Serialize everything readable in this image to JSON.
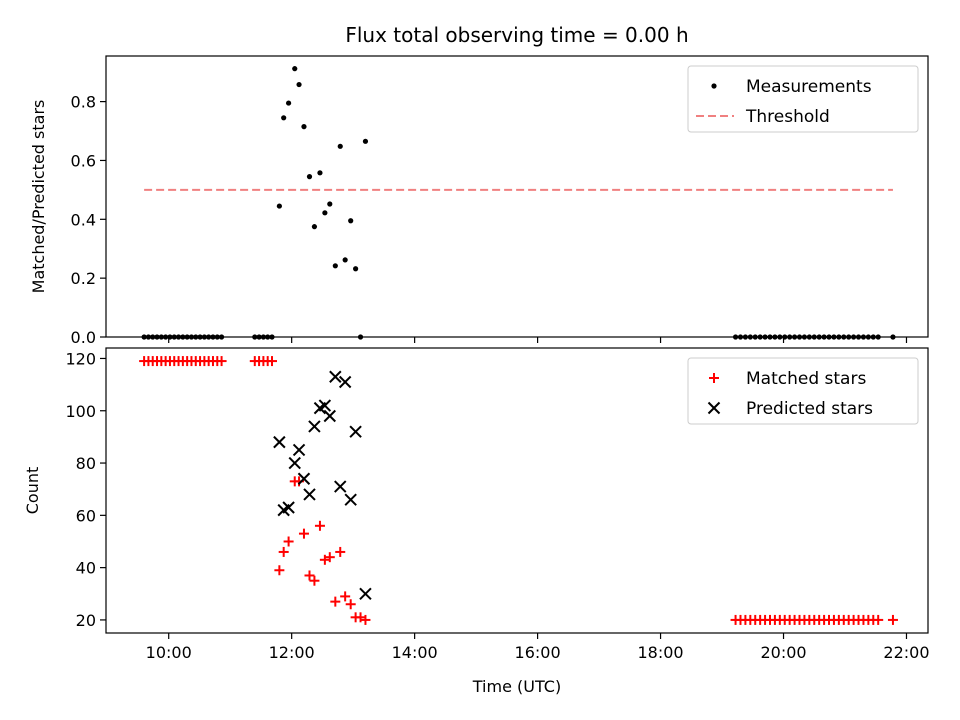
{
  "chart_data": [
    {
      "type": "scatter",
      "title": "Flux total observing time = 0.00 h",
      "xlabel": "",
      "ylabel": "Matched/Predicted stars",
      "xlim": [
        8.98,
        22.35
      ],
      "ylim": [
        0,
        0.955
      ],
      "xticks": [
        "10:00",
        "12:00",
        "14:00",
        "16:00",
        "18:00",
        "20:00",
        "22:00"
      ],
      "xtick_values": [
        10,
        12,
        14,
        16,
        18,
        20,
        22
      ],
      "xticks_labeled": false,
      "yticks": [
        0.0,
        0.2,
        0.4,
        0.6,
        0.8
      ],
      "ytick_labels": [
        "0.0",
        "0.2",
        "0.4",
        "0.6",
        "0.8"
      ],
      "legend": "top-right",
      "series": [
        {
          "name": "Measurements",
          "marker": "dot",
          "color": "#000000",
          "x": [
            9.6,
            9.67,
            9.74,
            9.81,
            9.88,
            9.95,
            10.02,
            10.09,
            10.16,
            10.23,
            10.3,
            10.37,
            10.44,
            10.51,
            10.58,
            10.65,
            10.72,
            10.79,
            10.86,
            11.4,
            11.47,
            11.54,
            11.61,
            11.68,
            11.8,
            11.87,
            11.95,
            12.05,
            12.12,
            12.2,
            12.29,
            12.37,
            12.46,
            12.54,
            12.62,
            12.71,
            12.79,
            12.87,
            12.96,
            13.04,
            13.12,
            13.2,
            19.22,
            19.3,
            19.38,
            19.46,
            19.54,
            19.62,
            19.7,
            19.78,
            19.86,
            19.94,
            20.02,
            20.1,
            20.18,
            20.26,
            20.34,
            20.42,
            20.5,
            20.58,
            20.66,
            20.74,
            20.82,
            20.9,
            20.98,
            21.06,
            21.14,
            21.22,
            21.3,
            21.38,
            21.46,
            21.54,
            21.78
          ],
          "y": [
            0,
            0,
            0,
            0,
            0,
            0,
            0,
            0,
            0,
            0,
            0,
            0,
            0,
            0,
            0,
            0,
            0,
            0,
            0,
            0,
            0,
            0,
            0,
            0,
            0.445,
            0.745,
            0.795,
            0.912,
            0.858,
            0.715,
            0.545,
            0.375,
            0.558,
            0.422,
            0.452,
            0.242,
            0.648,
            0.262,
            0.395,
            0.232,
            0.0,
            0.665,
            0,
            0,
            0,
            0,
            0,
            0,
            0,
            0,
            0,
            0,
            0,
            0,
            0,
            0,
            0,
            0,
            0,
            0,
            0,
            0,
            0,
            0,
            0,
            0,
            0,
            0,
            0,
            0,
            0,
            0,
            0
          ]
        },
        {
          "name": "Threshold",
          "marker": "dashed-line",
          "color": "#f08080",
          "x": [
            9.6,
            21.78
          ],
          "y": [
            0.5,
            0.5
          ]
        }
      ]
    },
    {
      "type": "scatter",
      "title": "",
      "xlabel": "Time (UTC)",
      "ylabel": "Count",
      "xlim": [
        8.98,
        22.35
      ],
      "ylim": [
        15,
        124
      ],
      "xticks": [
        "10:00",
        "12:00",
        "14:00",
        "16:00",
        "18:00",
        "20:00",
        "22:00"
      ],
      "xtick_values": [
        10,
        12,
        14,
        16,
        18,
        20,
        22
      ],
      "xticks_labeled": true,
      "yticks": [
        20,
        40,
        60,
        80,
        100,
        120
      ],
      "ytick_labels": [
        "20",
        "40",
        "60",
        "80",
        "100",
        "120"
      ],
      "legend": "top-right",
      "series": [
        {
          "name": "Matched stars",
          "marker": "plus",
          "color": "#ff0000",
          "x": [
            9.6,
            9.67,
            9.74,
            9.81,
            9.88,
            9.95,
            10.02,
            10.09,
            10.16,
            10.23,
            10.3,
            10.37,
            10.44,
            10.51,
            10.58,
            10.65,
            10.72,
            10.79,
            10.86,
            11.4,
            11.47,
            11.54,
            11.61,
            11.68,
            11.8,
            11.87,
            11.95,
            12.05,
            12.12,
            12.2,
            12.29,
            12.37,
            12.46,
            12.54,
            12.62,
            12.71,
            12.79,
            12.87,
            12.96,
            13.04,
            13.12,
            13.2,
            19.22,
            19.3,
            19.38,
            19.46,
            19.54,
            19.62,
            19.7,
            19.78,
            19.86,
            19.94,
            20.02,
            20.1,
            20.18,
            20.26,
            20.34,
            20.42,
            20.5,
            20.58,
            20.66,
            20.74,
            20.82,
            20.9,
            20.98,
            21.06,
            21.14,
            21.22,
            21.3,
            21.38,
            21.46,
            21.54,
            21.78
          ],
          "y": [
            119,
            119,
            119,
            119,
            119,
            119,
            119,
            119,
            119,
            119,
            119,
            119,
            119,
            119,
            119,
            119,
            119,
            119,
            119,
            119,
            119,
            119,
            119,
            119,
            39,
            46,
            50,
            73,
            73,
            53,
            37,
            35,
            56,
            43,
            44,
            27,
            46,
            29,
            26,
            21,
            21,
            20,
            20,
            20,
            20,
            20,
            20,
            20,
            20,
            20,
            20,
            20,
            20,
            20,
            20,
            20,
            20,
            20,
            20,
            20,
            20,
            20,
            20,
            20,
            20,
            20,
            20,
            20,
            20,
            20,
            20,
            20,
            20
          ]
        },
        {
          "name": "Predicted stars",
          "marker": "x",
          "color": "#000000",
          "x": [
            11.8,
            11.87,
            11.95,
            12.05,
            12.12,
            12.2,
            12.29,
            12.37,
            12.46,
            12.54,
            12.62,
            12.71,
            12.79,
            12.87,
            12.96,
            13.04,
            13.2
          ],
          "y": [
            88,
            62,
            63,
            80,
            85,
            74,
            68,
            94,
            101,
            102,
            98,
            113,
            71,
            111,
            66,
            92,
            30
          ]
        }
      ]
    }
  ]
}
